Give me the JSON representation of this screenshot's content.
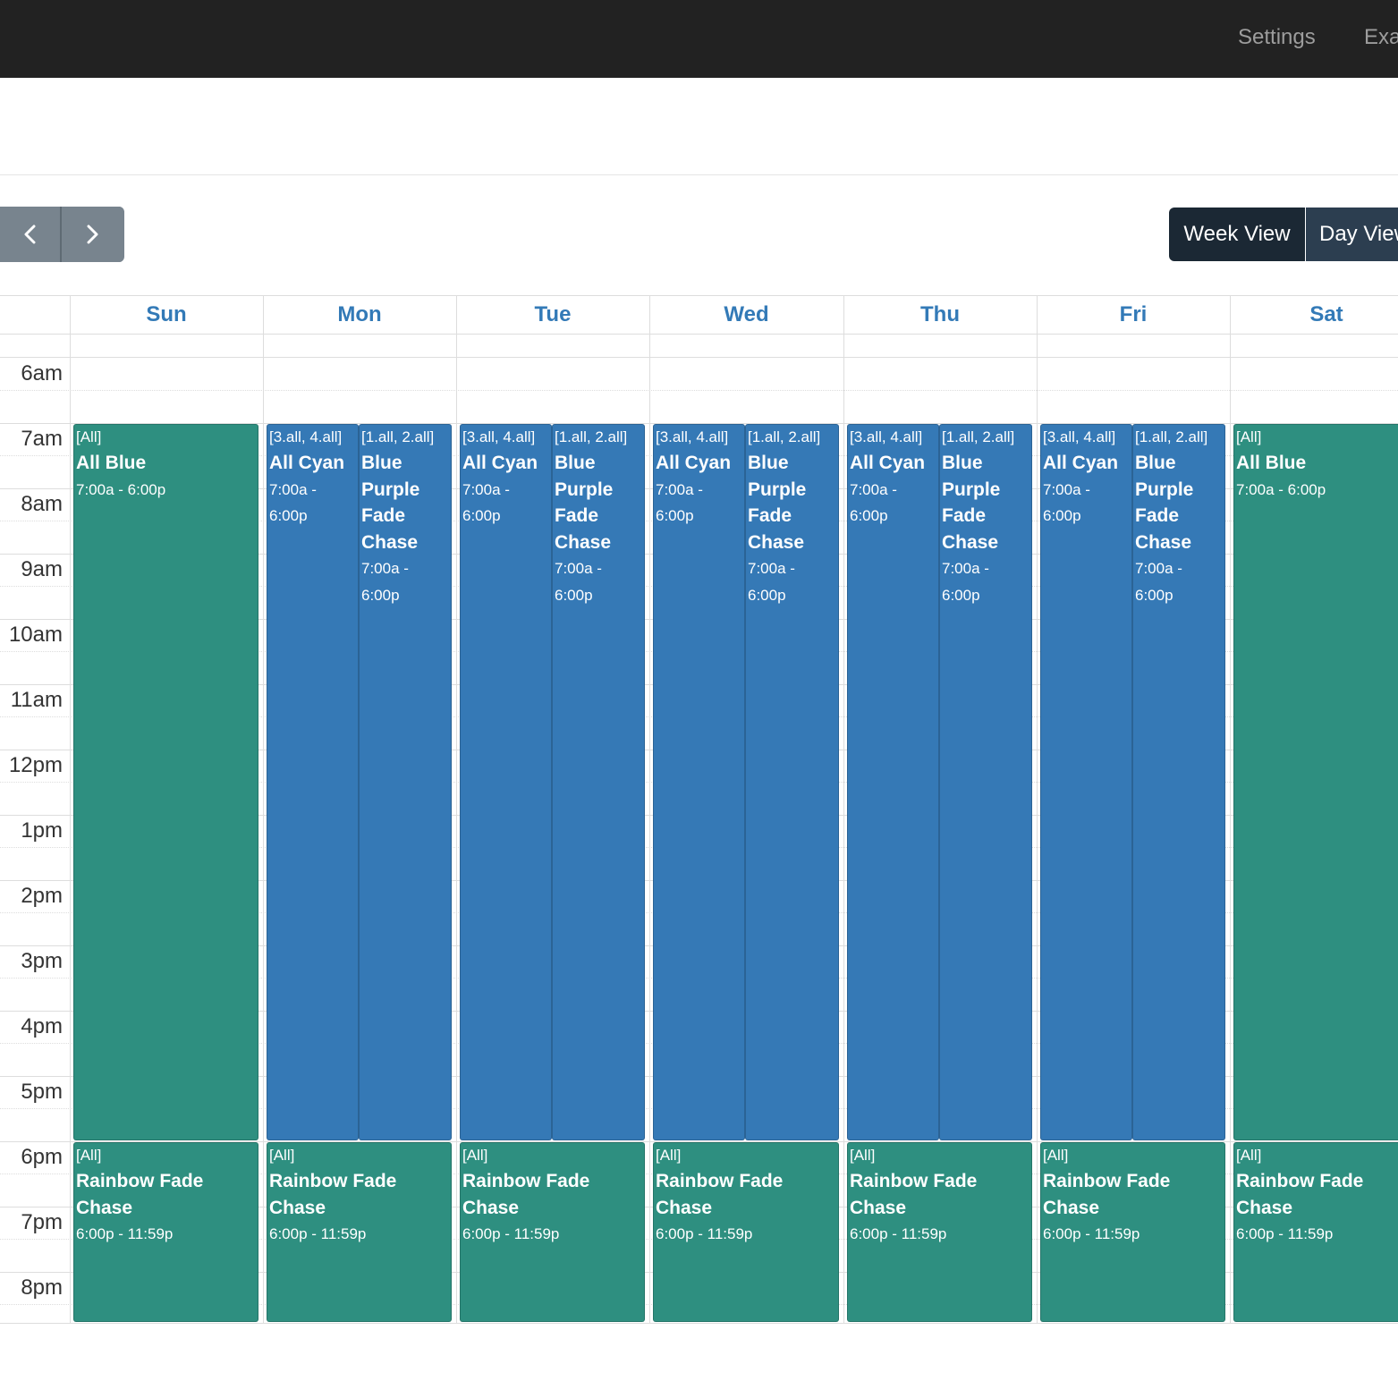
{
  "nav": {
    "links": [
      "Settings",
      "Exa"
    ]
  },
  "toolbar": {
    "prev_icon": "chevron-left-icon",
    "next_icon": "chevron-right-icon",
    "views": [
      "Week View",
      "Day View"
    ],
    "active_view": "Week View"
  },
  "calendar": {
    "days": [
      "Sun",
      "Mon",
      "Tue",
      "Wed",
      "Thu",
      "Fri",
      "Sat"
    ],
    "hours": [
      "6am",
      "7am",
      "8am",
      "9am",
      "10am",
      "11am",
      "12pm",
      "1pm",
      "2pm",
      "3pm",
      "4pm",
      "5pm",
      "6pm",
      "7pm",
      "8pm"
    ],
    "events": [
      {
        "day": 0,
        "lane": "full",
        "group": "[All]",
        "title": "All Blue",
        "time": "7:00a - 6:00p",
        "start": 7,
        "end": 18,
        "color": "teal"
      },
      {
        "day": 1,
        "lane": "left",
        "group": "[3.all, 4.all]",
        "title": "All Cyan",
        "time": "7:00a - 6:00p",
        "start": 7,
        "end": 18,
        "color": "blue"
      },
      {
        "day": 1,
        "lane": "right",
        "group": "[1.all, 2.all]",
        "title": "Blue Purple Fade Chase",
        "time": "7:00a - 6:00p",
        "start": 7,
        "end": 18,
        "color": "blue"
      },
      {
        "day": 2,
        "lane": "left",
        "group": "[3.all, 4.all]",
        "title": "All Cyan",
        "time": "7:00a - 6:00p",
        "start": 7,
        "end": 18,
        "color": "blue"
      },
      {
        "day": 2,
        "lane": "right",
        "group": "[1.all, 2.all]",
        "title": "Blue Purple Fade Chase",
        "time": "7:00a - 6:00p",
        "start": 7,
        "end": 18,
        "color": "blue"
      },
      {
        "day": 3,
        "lane": "left",
        "group": "[3.all, 4.all]",
        "title": "All Cyan",
        "time": "7:00a - 6:00p",
        "start": 7,
        "end": 18,
        "color": "blue"
      },
      {
        "day": 3,
        "lane": "right",
        "group": "[1.all, 2.all]",
        "title": "Blue Purple Fade Chase",
        "time": "7:00a - 6:00p",
        "start": 7,
        "end": 18,
        "color": "blue"
      },
      {
        "day": 4,
        "lane": "left",
        "group": "[3.all, 4.all]",
        "title": "All Cyan",
        "time": "7:00a - 6:00p",
        "start": 7,
        "end": 18,
        "color": "blue"
      },
      {
        "day": 4,
        "lane": "right",
        "group": "[1.all, 2.all]",
        "title": "Blue Purple Fade Chase",
        "time": "7:00a - 6:00p",
        "start": 7,
        "end": 18,
        "color": "blue"
      },
      {
        "day": 5,
        "lane": "left",
        "group": "[3.all, 4.all]",
        "title": "All Cyan",
        "time": "7:00a - 6:00p",
        "start": 7,
        "end": 18,
        "color": "blue"
      },
      {
        "day": 5,
        "lane": "right",
        "group": "[1.all, 2.all]",
        "title": "Blue Purple Fade Chase",
        "time": "7:00a - 6:00p",
        "start": 7,
        "end": 18,
        "color": "blue"
      },
      {
        "day": 6,
        "lane": "full",
        "group": "[All]",
        "title": "All Blue",
        "time": "7:00a - 6:00p",
        "start": 7,
        "end": 18,
        "color": "teal"
      },
      {
        "day": 0,
        "lane": "full",
        "group": "[All]",
        "title": "Rainbow Fade Chase",
        "time": "6:00p - 11:59p",
        "start": 18,
        "end": 24,
        "color": "teal"
      },
      {
        "day": 1,
        "lane": "full",
        "group": "[All]",
        "title": "Rainbow Fade Chase",
        "time": "6:00p - 11:59p",
        "start": 18,
        "end": 24,
        "color": "teal"
      },
      {
        "day": 2,
        "lane": "full",
        "group": "[All]",
        "title": "Rainbow Fade Chase",
        "time": "6:00p - 11:59p",
        "start": 18,
        "end": 24,
        "color": "teal"
      },
      {
        "day": 3,
        "lane": "full",
        "group": "[All]",
        "title": "Rainbow Fade Chase",
        "time": "6:00p - 11:59p",
        "start": 18,
        "end": 24,
        "color": "teal"
      },
      {
        "day": 4,
        "lane": "full",
        "group": "[All]",
        "title": "Rainbow Fade Chase",
        "time": "6:00p - 11:59p",
        "start": 18,
        "end": 24,
        "color": "teal"
      },
      {
        "day": 5,
        "lane": "full",
        "group": "[All]",
        "title": "Rainbow Fade Chase",
        "time": "6:00p - 11:59p",
        "start": 18,
        "end": 24,
        "color": "teal"
      },
      {
        "day": 6,
        "lane": "full",
        "group": "[All]",
        "title": "Rainbow Fade Chase",
        "time": "6:00p - 11:59p",
        "start": 18,
        "end": 24,
        "color": "teal"
      }
    ]
  },
  "colors": {
    "teal": "#2e8f80",
    "blue": "#3579b6",
    "header_text": "#337ab7",
    "navbar": "#222222"
  }
}
